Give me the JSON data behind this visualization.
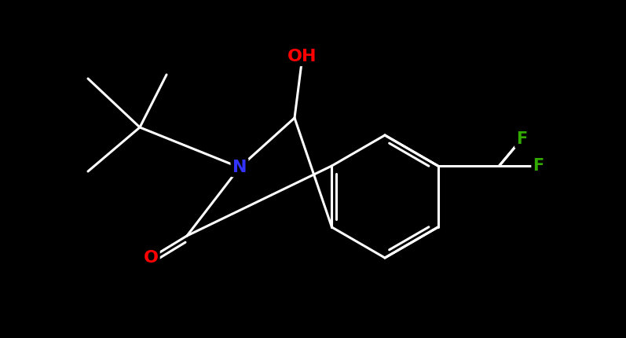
{
  "background_color": "#000000",
  "bond_color": "#ffffff",
  "atom_colors": {
    "N": "#3333ff",
    "O": "#ff0000",
    "F": "#33aa00",
    "C": "#ffffff"
  },
  "bond_width": 2.2,
  "figsize": [
    7.97,
    4.3
  ],
  "dpi": 100
}
